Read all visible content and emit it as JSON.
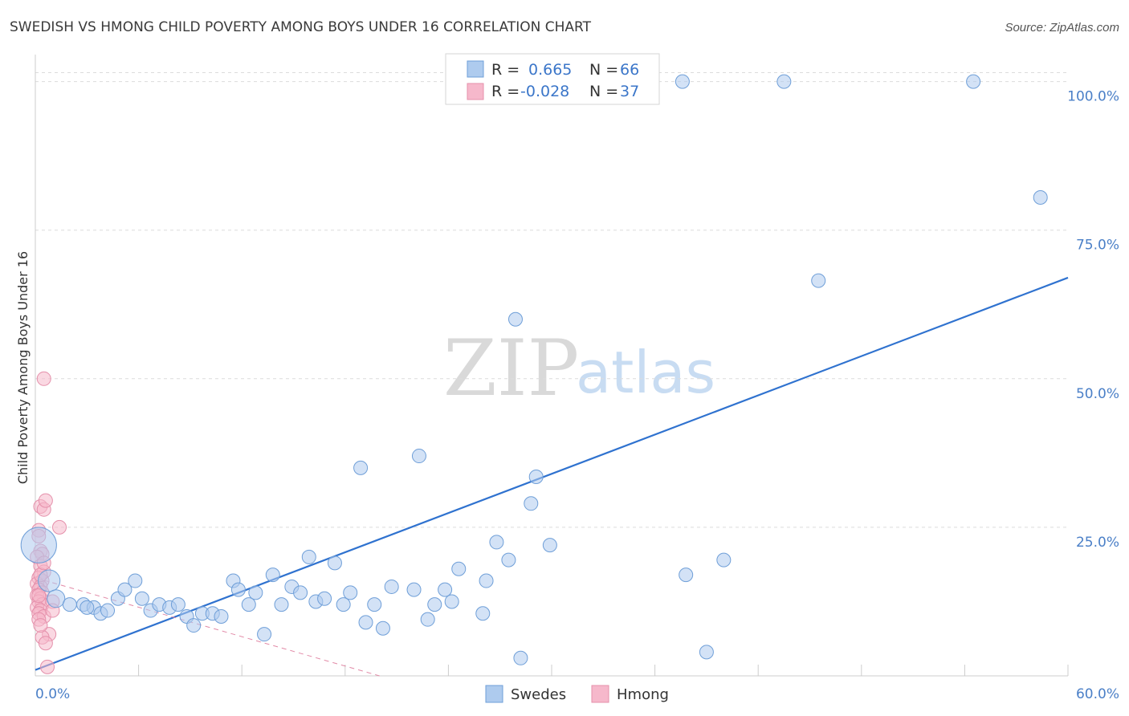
{
  "chart_data": {
    "type": "scatter",
    "title": "SWEDISH VS HMONG CHILD POVERTY AMONG BOYS UNDER 16 CORRELATION CHART",
    "source": "Source: ZipAtlas.com",
    "xlabel": "",
    "ylabel": "Child Poverty Among Boys Under 16",
    "xlim": [
      0,
      60
    ],
    "ylim": [
      0,
      104
    ],
    "x_tick_labels": [
      "0.0%",
      "60.0%"
    ],
    "y_ticks": [
      25,
      50,
      75,
      100
    ],
    "y_tick_labels": [
      "25.0%",
      "50.0%",
      "75.0%",
      "100.0%"
    ],
    "watermark": {
      "zip": "ZIP",
      "atlas": "atlas"
    },
    "legend": {
      "position": "top-center",
      "entries": [
        {
          "r_label": "R =",
          "r_value": "0.665",
          "n_label": "N =",
          "n_value": "66"
        },
        {
          "r_label": "R =",
          "r_value": "-0.028",
          "n_label": "N =",
          "n_value": "37"
        }
      ]
    },
    "series": [
      {
        "name": "Swedes",
        "color": "#aecbee",
        "edge_color": "#6f9fd8",
        "line_color": "#2f72cf",
        "trend": {
          "x": [
            0,
            60
          ],
          "y": [
            1,
            67
          ]
        },
        "points": [
          [
            0.2,
            22,
            2.6
          ],
          [
            0.8,
            16,
            1.6
          ],
          [
            1.2,
            13,
            1.3
          ],
          [
            2.0,
            12,
            1.0
          ],
          [
            2.8,
            12,
            1.0
          ],
          [
            3.4,
            11.5,
            1
          ],
          [
            3.8,
            10.5,
            1
          ],
          [
            4.2,
            11,
            1
          ],
          [
            4.8,
            13,
            1
          ],
          [
            5.2,
            14.5,
            1
          ],
          [
            5.8,
            16,
            1
          ],
          [
            6.2,
            13,
            1
          ],
          [
            6.7,
            11,
            1
          ],
          [
            7.2,
            12,
            1
          ],
          [
            7.8,
            11.5,
            1
          ],
          [
            8.3,
            12,
            1
          ],
          [
            8.8,
            10,
            1
          ],
          [
            9.2,
            8.5,
            1
          ],
          [
            9.7,
            10.5,
            1
          ],
          [
            10.3,
            10.5,
            1
          ],
          [
            10.8,
            10,
            1
          ],
          [
            11.5,
            16,
            1
          ],
          [
            11.8,
            14.5,
            1
          ],
          [
            12.4,
            12,
            1
          ],
          [
            12.8,
            14,
            1
          ],
          [
            13.3,
            7,
            1
          ],
          [
            13.8,
            17,
            1
          ],
          [
            14.3,
            12,
            1
          ],
          [
            14.9,
            15,
            1
          ],
          [
            15.4,
            14,
            1
          ],
          [
            15.9,
            20,
            1
          ],
          [
            16.3,
            12.5,
            1
          ],
          [
            16.8,
            13,
            1
          ],
          [
            17.4,
            19,
            1
          ],
          [
            17.9,
            12,
            1
          ],
          [
            18.3,
            14,
            1
          ],
          [
            18.9,
            35,
            1
          ],
          [
            19.2,
            9,
            1
          ],
          [
            19.7,
            12,
            1
          ],
          [
            20.2,
            8,
            1
          ],
          [
            20.7,
            15,
            1
          ],
          [
            22.0,
            14.5,
            1
          ],
          [
            22.3,
            37,
            1
          ],
          [
            22.8,
            9.5,
            1
          ],
          [
            23.2,
            12,
            1
          ],
          [
            23.8,
            14.5,
            1
          ],
          [
            24.2,
            12.5,
            1
          ],
          [
            24.6,
            18,
            1
          ],
          [
            26.0,
            10.5,
            1
          ],
          [
            26.2,
            16,
            1
          ],
          [
            26.8,
            22.5,
            1
          ],
          [
            27.5,
            19.5,
            1
          ],
          [
            27.9,
            60,
            1
          ],
          [
            28.2,
            3,
            1
          ],
          [
            28.8,
            29,
            1
          ],
          [
            29.1,
            33.5,
            1
          ],
          [
            29.9,
            22,
            1
          ],
          [
            37.6,
            100,
            1
          ],
          [
            37.8,
            17,
            1
          ],
          [
            39.0,
            4,
            1
          ],
          [
            40.0,
            19.5,
            1
          ],
          [
            43.5,
            100,
            1
          ],
          [
            45.5,
            66.5,
            1
          ],
          [
            54.5,
            100,
            1
          ],
          [
            58.4,
            80.5,
            1
          ],
          [
            3.0,
            11.5,
            1
          ]
        ]
      },
      {
        "name": "Hmong",
        "color": "#f6b8cb",
        "edge_color": "#e590ab",
        "line_color": "#e28aa7",
        "trend": {
          "x": [
            0,
            20
          ],
          "y": [
            16.5,
            0
          ]
        },
        "points": [
          [
            0.5,
            50,
            1
          ],
          [
            0.3,
            28.5,
            1
          ],
          [
            0.5,
            28,
            1
          ],
          [
            0.6,
            29.5,
            1
          ],
          [
            1.4,
            25,
            1
          ],
          [
            0.2,
            24.5,
            1
          ],
          [
            0.2,
            23.5,
            1
          ],
          [
            0.3,
            21,
            1
          ],
          [
            0.4,
            20.5,
            1
          ],
          [
            0.1,
            20,
            1
          ],
          [
            0.3,
            18.5,
            1
          ],
          [
            0.5,
            17.5,
            1
          ],
          [
            0.2,
            16.5,
            1
          ],
          [
            0.4,
            16,
            1
          ],
          [
            0.1,
            15.5,
            1
          ],
          [
            0.3,
            15,
            1
          ],
          [
            0.2,
            14.5,
            1
          ],
          [
            0.4,
            14,
            1
          ],
          [
            0.1,
            13.5,
            1
          ],
          [
            0.3,
            13,
            1
          ],
          [
            0.2,
            12.5,
            1
          ],
          [
            0.4,
            12,
            1
          ],
          [
            0.1,
            11.5,
            1
          ],
          [
            0.3,
            11,
            1
          ],
          [
            0.2,
            10.5,
            1
          ],
          [
            0.5,
            10,
            1
          ],
          [
            1.0,
            12.5,
            1
          ],
          [
            1.0,
            11,
            1
          ],
          [
            0.8,
            7,
            1
          ],
          [
            0.4,
            6.5,
            1
          ],
          [
            0.6,
            5.5,
            1
          ],
          [
            0.7,
            1.5,
            1
          ],
          [
            0.2,
            9.5,
            1
          ],
          [
            0.3,
            8.5,
            1
          ],
          [
            0.2,
            13.5,
            1
          ],
          [
            0.3,
            17,
            1
          ],
          [
            0.5,
            19,
            1
          ]
        ]
      }
    ]
  }
}
